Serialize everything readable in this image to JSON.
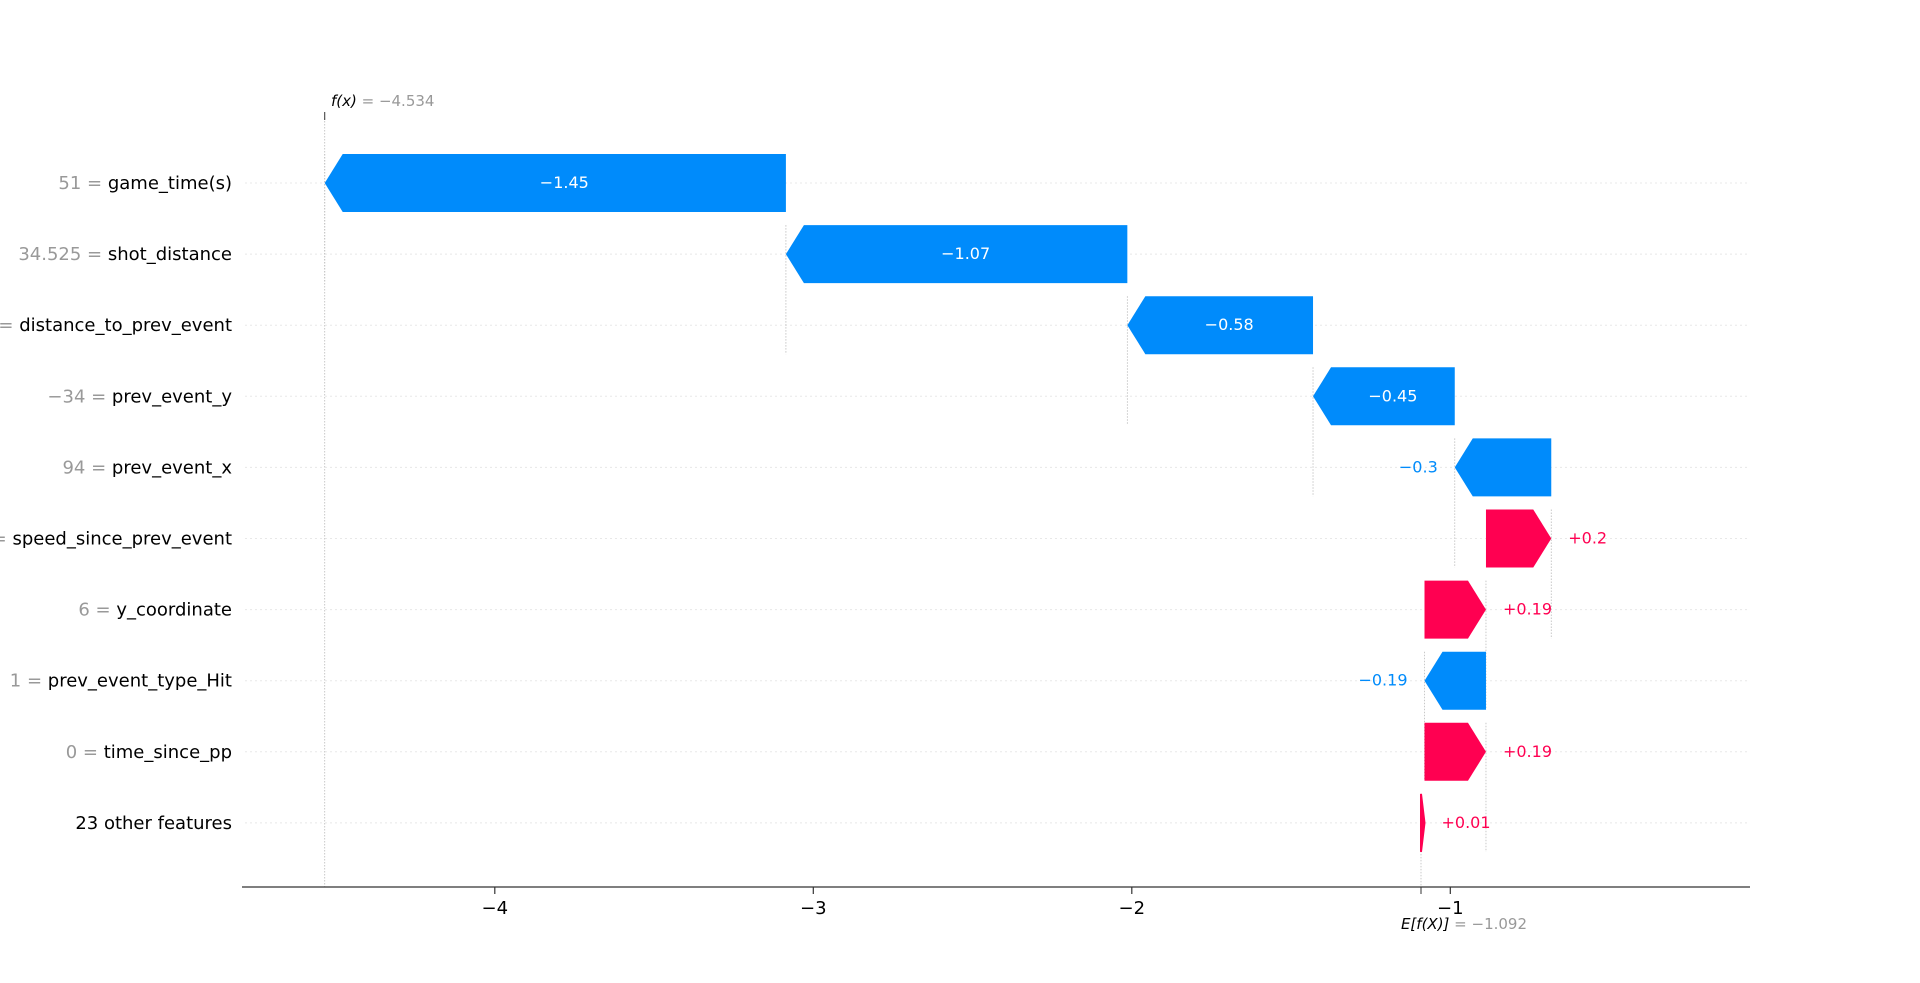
{
  "chart_data": {
    "type": "waterfall",
    "title": "",
    "xlabel": "",
    "ylabel": "",
    "xlim": [
      -4.8,
      -0.05
    ],
    "xticks": [
      -4,
      -3,
      -2,
      -1
    ],
    "xtick_labels": [
      "−4",
      "−3",
      "−2",
      "−1"
    ],
    "fx": {
      "label": "f(x)",
      "value_text": " = −4.534",
      "value": -4.534
    },
    "efx": {
      "label": "E[f(X)]",
      "value_text": " = −1.092",
      "value": -1.092
    },
    "colors": {
      "positive": "#ff0051",
      "negative": "#008bfb",
      "value_gray": "#999999"
    },
    "rows": [
      {
        "feature_value": "51",
        "feature": "game_time(s)",
        "shap": -1.45,
        "label": "−1.45",
        "start": -3.086,
        "end": -4.534,
        "label_inside": true
      },
      {
        "feature_value": "34.525",
        "feature": "shot_distance",
        "shap": -1.07,
        "label": "−1.07",
        "start": -2.014,
        "end": -3.086,
        "label_inside": true
      },
      {
        "feature_value": "",
        "feature": "distance_to_prev_event",
        "shap": -0.58,
        "label": "−0.58",
        "start": -1.431,
        "end": -2.014,
        "label_inside": true
      },
      {
        "feature_value": "−34",
        "feature": "prev_event_y",
        "shap": -0.45,
        "label": "−0.45",
        "start": -0.986,
        "end": -1.431,
        "label_inside": true
      },
      {
        "feature_value": "94",
        "feature": "prev_event_x",
        "shap": -0.3,
        "label": "−0.3",
        "start": -0.683,
        "end": -0.986,
        "label_inside": false
      },
      {
        "feature_value": "",
        "feature": "speed_since_prev_event",
        "shap": 0.2,
        "label": "+0.2",
        "start": -0.888,
        "end": -0.683,
        "label_inside": false
      },
      {
        "feature_value": "6",
        "feature": "y_coordinate",
        "shap": 0.19,
        "label": "+0.19",
        "start": -1.081,
        "end": -0.888,
        "label_inside": false
      },
      {
        "feature_value": "1",
        "feature": "prev_event_type_Hit",
        "shap": -0.19,
        "label": "−0.19",
        "start": -0.888,
        "end": -1.081,
        "label_inside": false
      },
      {
        "feature_value": "0",
        "feature": "time_since_pp",
        "shap": 0.19,
        "label": "+0.19",
        "start": -1.081,
        "end": -0.888,
        "label_inside": false
      },
      {
        "feature_value": "",
        "feature": "23 other features",
        "shap": 0.01,
        "label": "+0.01",
        "start": -1.092,
        "end": -1.081,
        "label_inside": false
      }
    ]
  }
}
